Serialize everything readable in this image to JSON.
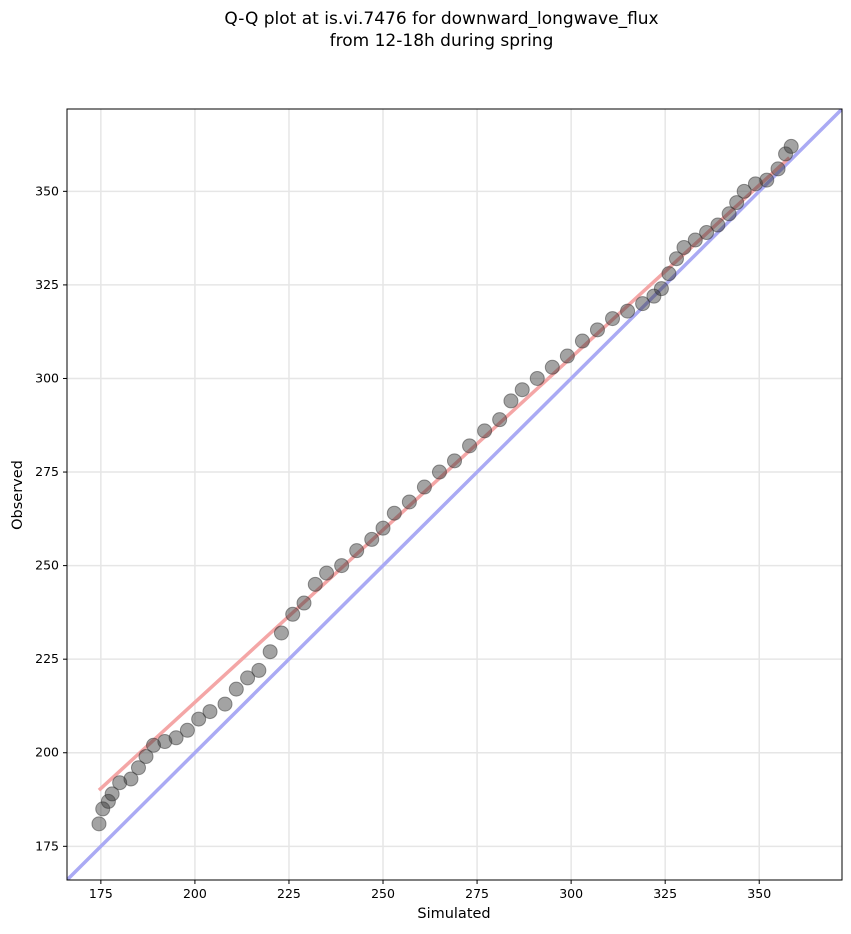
{
  "chart_data": {
    "type": "scatter",
    "title": "Q-Q plot at is.vi.7476 for downward_longwave_flux\nfrom 12-18h during spring",
    "x_label": "Simulated",
    "y_label": "Observed",
    "x": [
      174.5,
      175.5,
      177,
      178,
      180,
      183,
      185,
      187,
      189,
      192,
      195,
      198,
      201,
      204,
      208,
      211,
      214,
      217,
      220,
      223,
      226,
      229,
      232,
      235,
      239,
      243,
      247,
      250,
      253,
      257,
      261,
      265,
      269,
      273,
      277,
      281,
      284,
      287,
      291,
      295,
      299,
      303,
      307,
      311,
      315,
      319,
      322,
      324,
      326,
      328,
      330,
      333,
      336,
      339,
      342,
      344,
      346,
      349,
      352,
      355,
      357,
      358.5
    ],
    "y": [
      181,
      185,
      187,
      189,
      192,
      193,
      196,
      199,
      202,
      203,
      204,
      206,
      209,
      211,
      213,
      217,
      220,
      222,
      227,
      232,
      237,
      240,
      245,
      248,
      250,
      254,
      257,
      260,
      264,
      267,
      271,
      275,
      278,
      282,
      286,
      289,
      294,
      297,
      300,
      303,
      306,
      310,
      313,
      316,
      318,
      320,
      322,
      324,
      328,
      332,
      335,
      337,
      339,
      341,
      344,
      347,
      350,
      352,
      353,
      356,
      360,
      362
    ],
    "color": "#333333",
    "fit_line": {
      "x": [
        174.5,
        358
      ],
      "y": [
        190,
        359
      ],
      "color": "#f4a6a6"
    },
    "identity_line": {
      "x": [
        166,
        372
      ],
      "y": [
        166,
        372
      ],
      "color": "#aaaaf4"
    },
    "xlim": [
      166,
      372
    ],
    "ylim": [
      166,
      372
    ],
    "xticks": [
      175,
      200,
      225,
      250,
      275,
      300,
      325,
      350
    ],
    "yticks": [
      175,
      200,
      225,
      250,
      275,
      300,
      325,
      350
    ],
    "grid": true
  }
}
